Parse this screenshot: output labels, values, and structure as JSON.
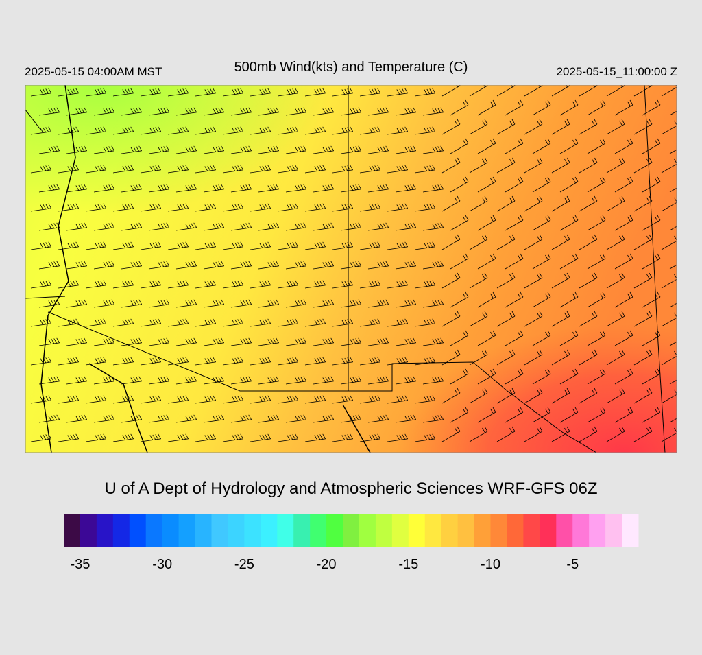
{
  "header": {
    "left": "2025-05-15 04:00AM MST",
    "title": "500mb Wind(kts) and Temperature (C)",
    "right": "2025-05-15_11:00:00 Z"
  },
  "credit": "U of A Dept of Hydrology and Atmospheric Sciences WRF-GFS 06Z",
  "colorbar": {
    "lim": [
      -36,
      -1
    ],
    "ticks": [
      -35,
      -30,
      -25,
      -20,
      -15,
      -10,
      -5
    ],
    "colors": [
      "#3c0a46",
      "#3c0896",
      "#2814c8",
      "#1428e6",
      "#0050ff",
      "#0a78ff",
      "#0a8cff",
      "#14a0ff",
      "#28b4ff",
      "#40c8ff",
      "#3cd4ff",
      "#3ce2ff",
      "#3cf0ff",
      "#40ffe8",
      "#38f0b0",
      "#40ff70",
      "#50ff40",
      "#80f040",
      "#a0ff40",
      "#c0ff40",
      "#e0ff40",
      "#ffff38",
      "#ffe840",
      "#ffd040",
      "#ffc040",
      "#ffa038",
      "#ff8838",
      "#ff6838",
      "#ff4848",
      "#ff3058",
      "#ff50a8",
      "#ff78d8",
      "#ffa0f0",
      "#ffc0f0",
      "#ffe8ff"
    ]
  }
}
